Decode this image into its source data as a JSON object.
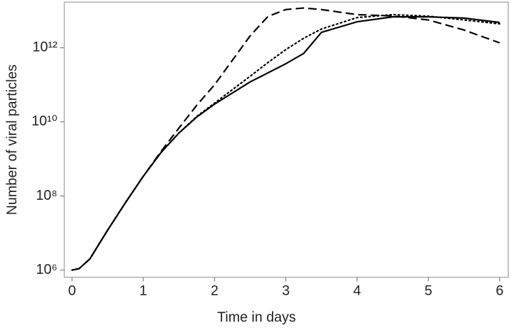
{
  "chart_data": {
    "type": "line",
    "xlabel": "Time in days",
    "ylabel": "Number of viral particles",
    "x": [
      0,
      0.1,
      0.25,
      0.5,
      0.75,
      1,
      1.25,
      1.5,
      1.75,
      2,
      2.5,
      2.75,
      3,
      3.25,
      3.5,
      4,
      4.5,
      5,
      5.5,
      6
    ],
    "series": [
      {
        "color": "#000000",
        "dash": "solid",
        "values": [
          1000000.0,
          1100000.0,
          2000000.0,
          12000000.0,
          66000000.0,
          340000000.0,
          1500000000.0,
          5000000000.0,
          13500000000.0,
          30000000000.0,
          120000000000.0,
          210000000000.0,
          370000000000.0,
          700000000000.0,
          2600000000000.0,
          5000000000000.0,
          6800000000000.0,
          6800000000000.0,
          6300000000000.0,
          4800000000000.0
        ]
      },
      {
        "color": "#000000",
        "dash": "dashed",
        "values": [
          1000000.0,
          1100000.0,
          2000000.0,
          12000000.0,
          66000000.0,
          340000000.0,
          1600000000.0,
          6800000000.0,
          28000000000.0,
          100000000000.0,
          2100000000000.0,
          7000000000000.0,
          10700000000000.0,
          11800000000000.0,
          10700000000000.0,
          7800000000000.0,
          7200000000000.0,
          5600000000000.0,
          3000000000000.0,
          1350000000000.0
        ]
      },
      {
        "color": "#000000",
        "dash": "dotted",
        "values": [
          1000000.0,
          1100000.0,
          2000000.0,
          12000000.0,
          66000000.0,
          340000000.0,
          1500000000.0,
          5000000000.0,
          14000000000.0,
          32000000000.0,
          170000000000.0,
          400000000000.0,
          890000000000.0,
          1800000000000.0,
          3200000000000.0,
          6500000000000.0,
          7800000000000.0,
          7100000000000.0,
          5600000000000.0,
          4400000000000.0
        ]
      }
    ],
    "xlim": [
      -0.108,
      6.12
    ],
    "xticks": [
      0,
      1,
      2,
      3,
      4,
      5,
      6
    ],
    "ylim": [
      640000,
      17000000000000.0
    ],
    "ylog": true,
    "yticks": [
      {
        "value": 1000000,
        "label": "10⁶"
      },
      {
        "value": 100000000,
        "label": "10⁸"
      },
      {
        "value": 10000000000,
        "label": "10¹⁰"
      },
      {
        "value": 1000000000000,
        "label": "10¹²"
      }
    ],
    "grid": false
  }
}
